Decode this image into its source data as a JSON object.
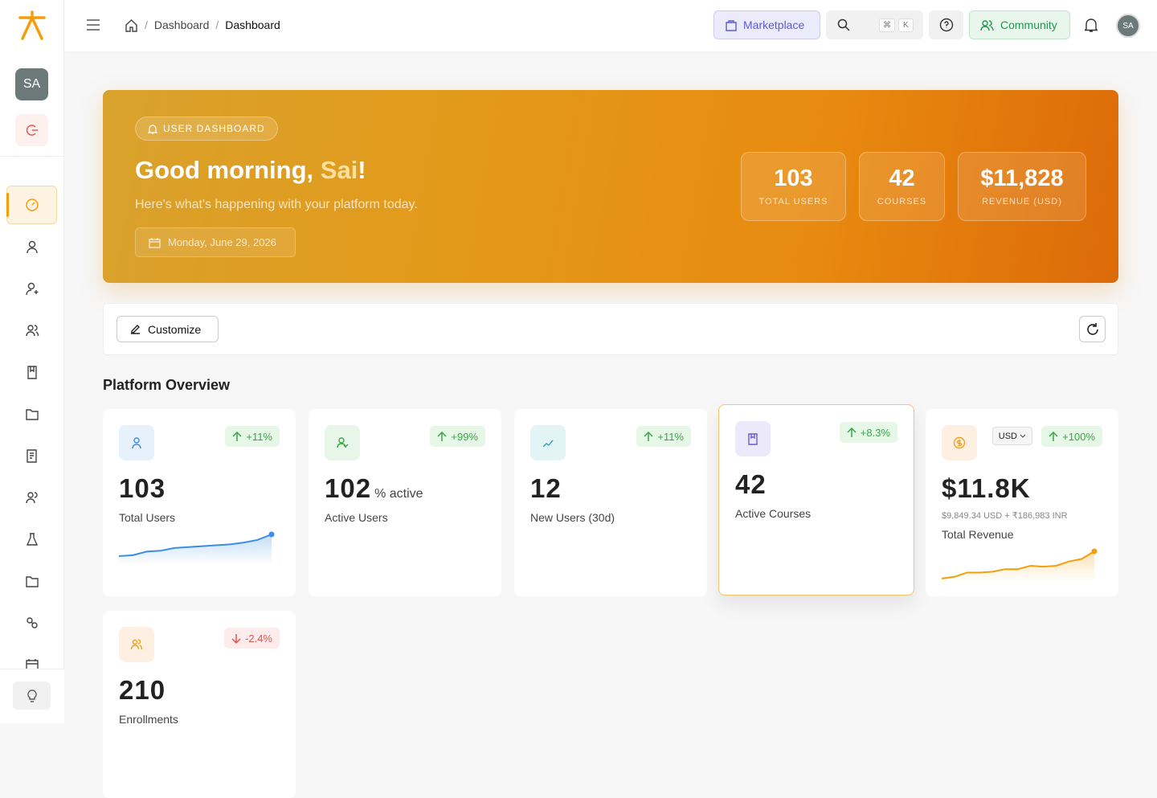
{
  "header": {
    "breadcrumb": [
      "Dashboard",
      "Dashboard"
    ],
    "marketplace": "Marketplace",
    "search_keys": [
      "⌘",
      "K"
    ],
    "community": "Community",
    "avatar": "SA"
  },
  "sidebar": {
    "avatar": "SA"
  },
  "hero": {
    "badge": "USER DASHBOARD",
    "greeting": "Good morning,",
    "name": "Sai",
    "exclaim": "!",
    "subtitle": "Here's what's happening with your platform today.",
    "date": "Monday, June 29, 2026",
    "stats": [
      {
        "value": "103",
        "label": "TOTAL USERS"
      },
      {
        "value": "42",
        "label": "COURSES"
      },
      {
        "value": "$11,828",
        "label": "REVENUE (USD)"
      }
    ]
  },
  "toolbar": {
    "customize": "Customize"
  },
  "overview": {
    "title": "Platform Overview",
    "cards": [
      {
        "value": "103",
        "label": "Total Users",
        "change": "+11%",
        "sparkline": [
          8,
          9,
          13,
          14,
          17,
          18,
          19,
          20,
          21,
          23,
          26,
          32
        ]
      },
      {
        "value": "102",
        "suffix": "% active",
        "label": "Active Users",
        "change": "+99%"
      },
      {
        "value": "12",
        "label": "New Users (30d)",
        "change": "+11%"
      },
      {
        "value": "42",
        "label": "Active Courses",
        "change": "+8.3%"
      },
      {
        "value": "$11.8K",
        "label": "Total Revenue",
        "change": "+100%",
        "currency": "USD",
        "detail": "$9,849.34 USD + ₹186,983 INR",
        "sparkline": [
          2,
          4,
          9,
          9,
          10,
          13,
          13,
          17,
          16,
          17,
          22,
          25,
          34
        ]
      },
      {
        "value": "210",
        "label": "Enrollments",
        "change": "-2.4%"
      }
    ]
  }
}
